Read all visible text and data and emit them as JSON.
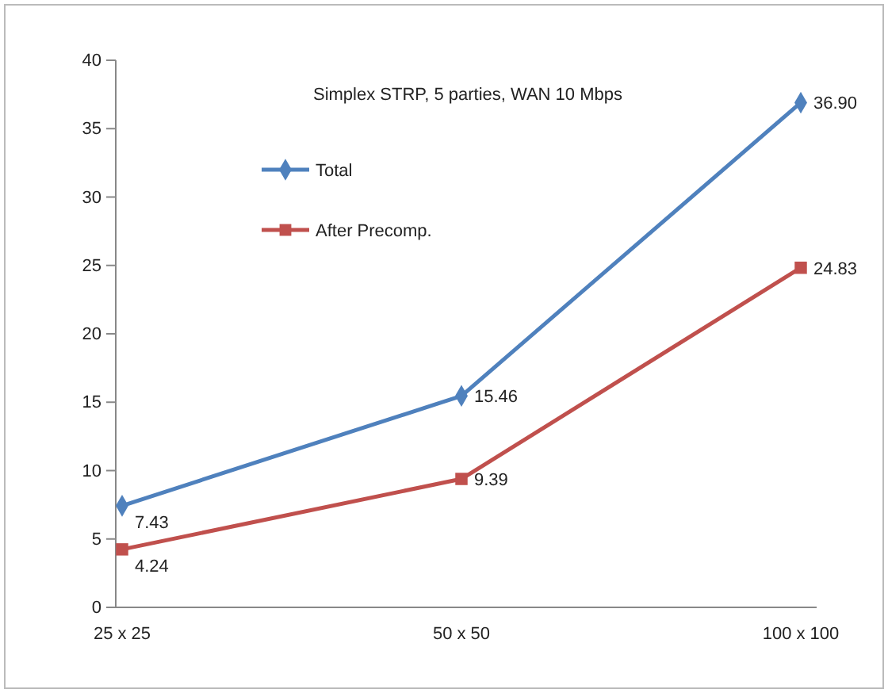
{
  "chart_data": {
    "type": "line",
    "title": "Simplex STRP, 5 parties, WAN 10 Mbps",
    "categories": [
      "25 x 25",
      "50 x 50",
      "100 x 100"
    ],
    "series": [
      {
        "name": "Total",
        "color": "#4f81bd",
        "marker": "diamond",
        "values": [
          7.43,
          15.46,
          36.9
        ],
        "value_labels": [
          "7.43",
          "15.46",
          "36.90"
        ]
      },
      {
        "name": "After Precomp.",
        "color": "#c0504d",
        "marker": "square",
        "values": [
          4.24,
          9.39,
          24.83
        ],
        "value_labels": [
          "4.24",
          "9.39",
          "24.83"
        ]
      }
    ],
    "ylim": [
      0,
      40
    ],
    "yticks": [
      0,
      5,
      10,
      15,
      20,
      25,
      30,
      35,
      40
    ],
    "grid": false,
    "legend": "top left",
    "line_style": "solid"
  }
}
